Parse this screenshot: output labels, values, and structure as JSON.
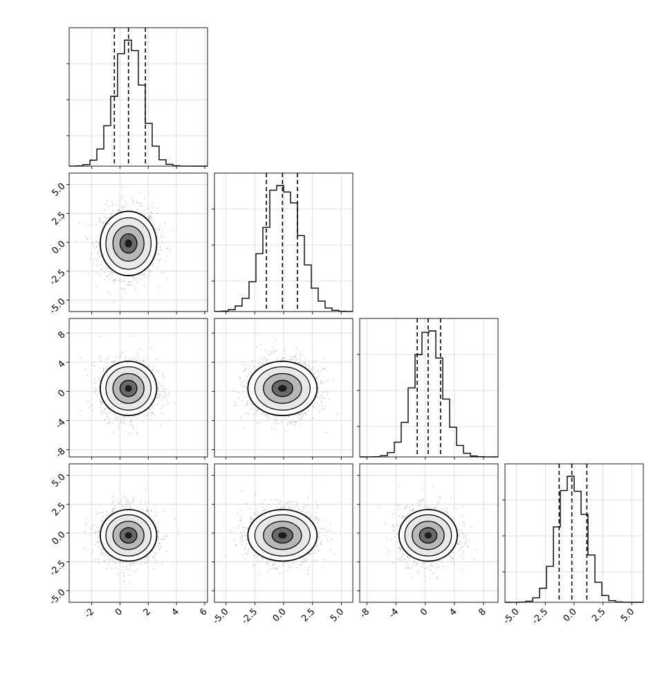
{
  "chart_data": {
    "type": "corner",
    "description_free": true,
    "n_params": 4,
    "ranges": [
      [
        -3.6,
        6.2
      ],
      [
        -6.0,
        6.0
      ],
      [
        -9.0,
        10.0
      ],
      [
        -6.0,
        6.0
      ]
    ],
    "ticks": [
      [
        "-2",
        "0",
        "2",
        "4",
        "6"
      ],
      [
        "-5.0",
        "-2.5",
        "0.0",
        "2.5",
        "5.0"
      ],
      [
        "-8",
        "-4",
        "0",
        "4",
        "8"
      ],
      [
        "-5.0",
        "-2.5",
        "0.0",
        "2.5",
        "5.0"
      ]
    ],
    "tick_values": [
      [
        -2,
        0,
        2,
        4,
        6
      ],
      [
        -5.0,
        -2.5,
        0.0,
        2.5,
        5.0
      ],
      [
        -8,
        -4,
        0,
        4,
        8
      ],
      [
        -5.0,
        -2.5,
        0.0,
        2.5,
        5.0
      ]
    ],
    "centers": [
      0.6,
      -0.1,
      0.4,
      -0.2
    ],
    "sigmas": [
      1.0,
      1.5,
      2.0,
      1.2
    ],
    "quantiles": [
      [
        -0.4,
        0.6,
        1.8
      ],
      [
        -1.5,
        -0.1,
        1.2
      ],
      [
        -1.1,
        0.4,
        2.1
      ],
      [
        -1.3,
        -0.2,
        1.1
      ]
    ],
    "hist_bins": 20,
    "hist_color": "#000000",
    "scatter_color": "#8a8a8a",
    "grid": true
  }
}
